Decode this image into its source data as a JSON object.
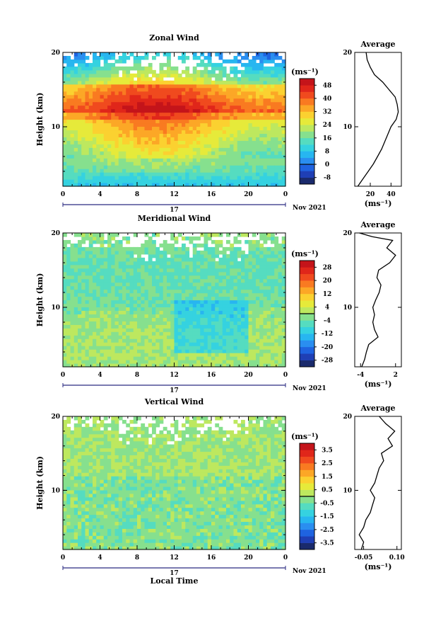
{
  "chart_data": [
    {
      "type": "heatmap",
      "title": "Zonal Wind",
      "ylabel": "Height (km)",
      "yticks": [
        "10",
        "20"
      ],
      "ylim": [
        2,
        20
      ],
      "xticks": [
        "0",
        "4",
        "8",
        "12",
        "16",
        "20",
        "0"
      ],
      "xlim": [
        0,
        24
      ],
      "date_mid": "17",
      "date_end": "Nov 2021",
      "colorbar_unit": "(ms⁻¹)",
      "colorbar_ticks": [
        "48",
        "40",
        "32",
        "24",
        "16",
        "8",
        "0",
        "-8"
      ],
      "colorbar_range": [
        -12,
        52
      ],
      "profile": {
        "title": "Average",
        "xticks": [
          "20",
          "40"
        ],
        "xlim": [
          5,
          50
        ],
        "xlabel": "(ms⁻¹)",
        "yticks": [
          "10",
          "20"
        ],
        "heights": [
          2,
          3,
          4,
          5,
          6,
          7,
          8,
          9,
          10,
          11,
          12,
          13,
          14,
          15,
          16,
          17,
          18,
          19,
          20
        ],
        "values": [
          8,
          13,
          18,
          23,
          27,
          31,
          34,
          37,
          40,
          45,
          47,
          46,
          44,
          38,
          32,
          24,
          20,
          17,
          16
        ]
      }
    },
    {
      "type": "heatmap",
      "title": "Meridional Wind",
      "ylabel": "Height (km)",
      "yticks": [
        "10",
        "20"
      ],
      "ylim": [
        2,
        20
      ],
      "xticks": [
        "0",
        "4",
        "8",
        "12",
        "16",
        "20",
        "0"
      ],
      "xlim": [
        0,
        24
      ],
      "date_mid": "17",
      "date_end": "Nov 2021",
      "colorbar_unit": "(ms⁻¹)",
      "colorbar_ticks": [
        "28",
        "20",
        "12",
        "4",
        "-4",
        "-12",
        "-20",
        "-28"
      ],
      "colorbar_range": [
        -32,
        32
      ],
      "profile": {
        "title": "Average",
        "xticks": [
          "-4",
          "2"
        ],
        "xlim": [
          -5,
          3
        ],
        "xlabel": "(ms⁻¹)",
        "yticks": [
          "10",
          "20"
        ],
        "heights": [
          2,
          3,
          4,
          5,
          6,
          7,
          8,
          9,
          10,
          11,
          12,
          13,
          14,
          15,
          16,
          17,
          18,
          19,
          19.5,
          20
        ],
        "values": [
          -3.8,
          -3.3,
          -3.0,
          -2.6,
          -1.0,
          -1.6,
          -1.9,
          -1.6,
          -1.9,
          -1.4,
          -0.8,
          -0.5,
          -1.2,
          -0.9,
          1.0,
          2.0,
          0.5,
          1.5,
          -2.0,
          -4.2
        ]
      }
    },
    {
      "type": "heatmap",
      "title": "Vertical Wind",
      "ylabel": "Height (km)",
      "yticks": [
        "10",
        "20"
      ],
      "ylim": [
        2,
        20
      ],
      "xticks": [
        "0",
        "4",
        "8",
        "12",
        "16",
        "20",
        "0"
      ],
      "xlim": [
        0,
        24
      ],
      "xlabel": "Local Time",
      "date_mid": "17",
      "date_end": "Nov 2021",
      "colorbar_unit": "(ms⁻¹)",
      "colorbar_ticks": [
        "3.5",
        "2.5",
        "1.5",
        "0.5",
        "-0.5",
        "-1.5",
        "-2.5",
        "-3.5"
      ],
      "colorbar_range": [
        -4,
        4
      ],
      "profile": {
        "title": "Average",
        "xticks": [
          "-0.05",
          "0.10"
        ],
        "xlim": [
          -0.09,
          0.12
        ],
        "xlabel": "(ms⁻¹)",
        "yticks": [
          "10",
          "20"
        ],
        "heights": [
          2,
          3,
          4,
          5,
          6,
          7,
          8,
          9,
          10,
          11,
          12,
          13,
          14,
          15,
          16,
          17,
          18,
          19,
          20
        ],
        "values": [
          -0.06,
          -0.05,
          -0.07,
          -0.05,
          -0.04,
          -0.02,
          -0.01,
          0.0,
          -0.02,
          0.0,
          0.01,
          0.02,
          0.04,
          0.03,
          0.08,
          0.06,
          0.09,
          0.05,
          0.02
        ]
      }
    }
  ]
}
